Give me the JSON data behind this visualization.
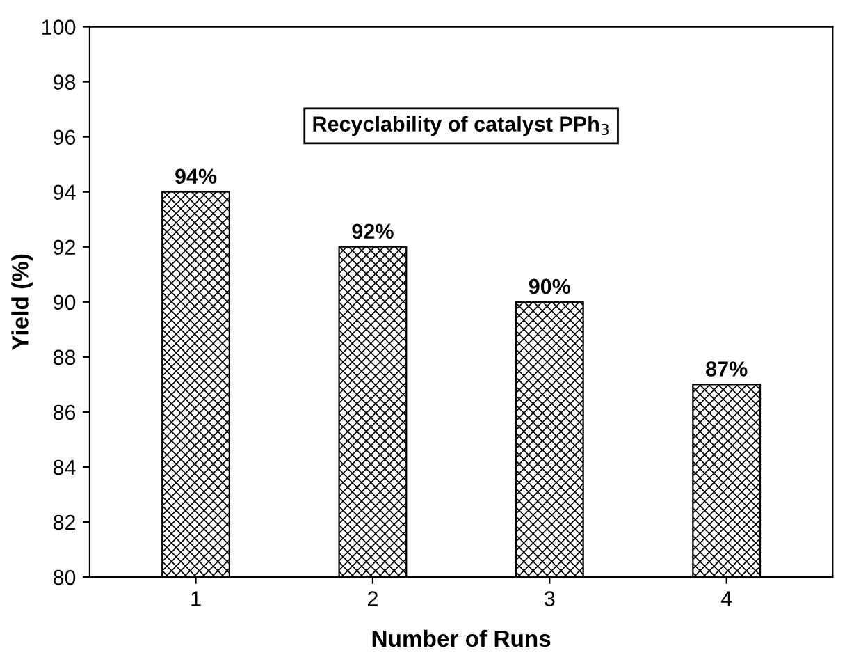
{
  "chart_data": {
    "type": "bar",
    "xlabel": "Number of Runs",
    "ylabel": "Yield (%)",
    "categories": [
      "1",
      "2",
      "3",
      "4"
    ],
    "values": [
      94,
      92,
      90,
      87
    ],
    "value_labels": [
      "94%",
      "92%",
      "90%",
      "87%"
    ],
    "color": "#000000",
    "ylim": [
      80,
      100
    ],
    "yticks": [
      80,
      82,
      84,
      86,
      88,
      90,
      92,
      94,
      96,
      98,
      100
    ],
    "annotations": [
      "Recyclability of catalyst PPh$_{3}$"
    ],
    "grid": false,
    "legend": false
  }
}
